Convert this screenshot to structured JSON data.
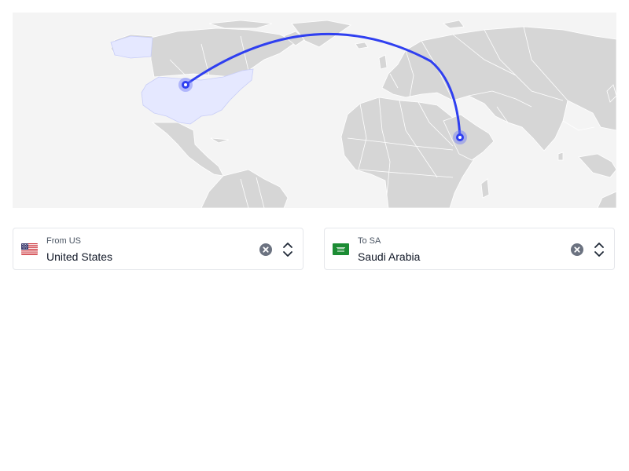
{
  "map": {
    "route": {
      "from_country": "United States",
      "to_country": "Saudi Arabia"
    },
    "colors": {
      "background": "#f4f4f4",
      "land": "#d6d6d6",
      "border": "#ffffff",
      "highlight": "#e5e8ff",
      "route": "#2f3ff0",
      "marker": "#6f7bf7"
    }
  },
  "from": {
    "caption": "From US",
    "value": "United States",
    "flag": "us-flag-icon",
    "clear_icon": "close-circle-icon",
    "toggle_icon": "chevron-up-down-icon"
  },
  "to": {
    "caption": "To SA",
    "value": "Saudi Arabia",
    "flag": "sa-flag-icon",
    "clear_icon": "close-circle-icon",
    "toggle_icon": "chevron-up-down-icon"
  }
}
